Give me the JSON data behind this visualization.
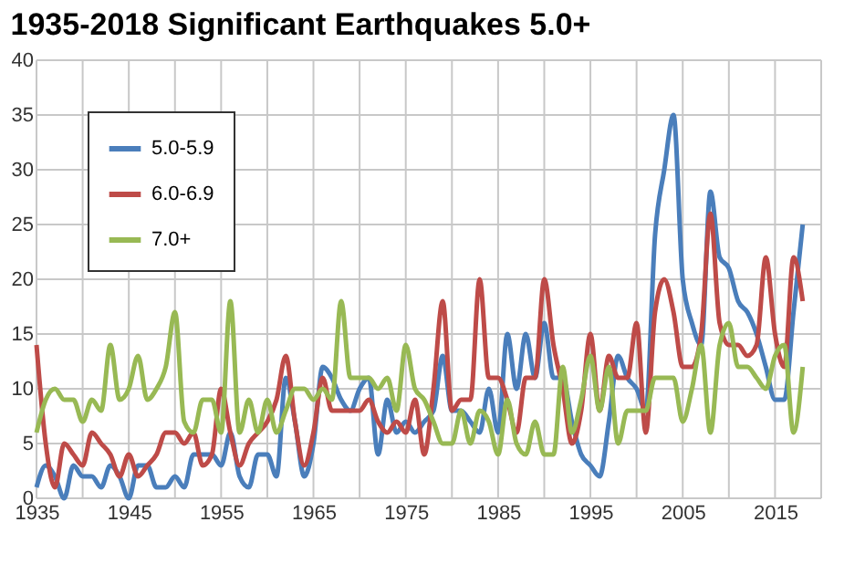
{
  "chart_data": {
    "type": "line",
    "title": "1935-2018 Significant Earthquakes 5.0+",
    "x": [
      1935,
      1936,
      1937,
      1938,
      1939,
      1940,
      1941,
      1942,
      1943,
      1944,
      1945,
      1946,
      1947,
      1948,
      1949,
      1950,
      1951,
      1952,
      1953,
      1954,
      1955,
      1956,
      1957,
      1958,
      1959,
      1960,
      1961,
      1962,
      1963,
      1964,
      1965,
      1966,
      1967,
      1968,
      1969,
      1970,
      1971,
      1972,
      1973,
      1974,
      1975,
      1976,
      1977,
      1978,
      1979,
      1980,
      1981,
      1982,
      1983,
      1984,
      1985,
      1986,
      1987,
      1988,
      1989,
      1990,
      1991,
      1992,
      1993,
      1994,
      1995,
      1996,
      1997,
      1998,
      1999,
      2000,
      2001,
      2002,
      2003,
      2004,
      2005,
      2006,
      2007,
      2008,
      2009,
      2010,
      2011,
      2012,
      2013,
      2014,
      2015,
      2016,
      2017,
      2018
    ],
    "series": [
      {
        "name": "5.0-5.9",
        "color": "#4a7ebb",
        "values": [
          1,
          3,
          2,
          0,
          3,
          2,
          2,
          1,
          3,
          2,
          0,
          3,
          3,
          1,
          1,
          2,
          1,
          4,
          4,
          4,
          3,
          6,
          2,
          1,
          4,
          4,
          2,
          11,
          7,
          2,
          5,
          12,
          11,
          9,
          8,
          10,
          11,
          4,
          9,
          6,
          7,
          6,
          7,
          8,
          13,
          8,
          8,
          7,
          6,
          10,
          6,
          15,
          10,
          15,
          11,
          16,
          11,
          11,
          7,
          4,
          3,
          2,
          7,
          13,
          11,
          10,
          8,
          24,
          30,
          35,
          20,
          16,
          14,
          28,
          22,
          21,
          18,
          17,
          15,
          12,
          9,
          9,
          17,
          25
        ]
      },
      {
        "name": "6.0-6.9",
        "color": "#be4b48",
        "values": [
          14,
          5,
          1,
          5,
          4,
          3,
          6,
          5,
          4,
          2,
          4,
          2,
          3,
          4,
          6,
          6,
          5,
          6,
          3,
          4,
          10,
          6,
          3,
          5,
          6,
          7,
          9,
          13,
          7,
          3,
          6,
          11,
          8,
          8,
          8,
          8,
          9,
          7,
          6,
          7,
          6,
          9,
          4,
          10,
          18,
          8,
          9,
          9,
          20,
          11,
          11,
          9,
          6,
          11,
          11,
          20,
          14,
          10,
          5,
          8,
          15,
          8,
          13,
          11,
          11,
          16,
          6,
          17,
          20,
          17,
          12,
          12,
          15,
          26,
          16,
          14,
          14,
          13,
          14,
          22,
          15,
          12,
          22,
          18
        ]
      },
      {
        "name": "7.0+",
        "color": "#98b954",
        "values": [
          6,
          9,
          10,
          9,
          9,
          7,
          9,
          8,
          14,
          9,
          10,
          13,
          9,
          10,
          12,
          17,
          7,
          6,
          9,
          9,
          6,
          18,
          6,
          9,
          6,
          9,
          6,
          8,
          10,
          10,
          9,
          10,
          9,
          18,
          11,
          11,
          11,
          10,
          11,
          8,
          14,
          10,
          9,
          7,
          5,
          5,
          8,
          5,
          8,
          7,
          4,
          9,
          5,
          4,
          7,
          4,
          4,
          12,
          6,
          9,
          13,
          8,
          12,
          5,
          8,
          8,
          8,
          11,
          11,
          11,
          7,
          10,
          14,
          6,
          14,
          16,
          12,
          12,
          11,
          10,
          13,
          14,
          6,
          12
        ]
      }
    ],
    "xlim": [
      1935,
      2020
    ],
    "xticks": [
      1935,
      {
        "value": 1940,
        "label": null
      },
      1945,
      {
        "value": 1950,
        "label": null
      },
      1955,
      {
        "value": 1960,
        "label": null
      },
      1965,
      {
        "value": 1970,
        "label": null
      },
      1975,
      {
        "value": 1980,
        "label": null
      },
      1985,
      {
        "value": 1990,
        "label": null
      },
      1995,
      {
        "value": 2000,
        "label": null
      },
      2005,
      {
        "value": 2010,
        "label": null
      },
      2015,
      {
        "value": 2020,
        "label": null
      }
    ],
    "ylim": [
      0,
      40
    ],
    "yticks": [
      0,
      5,
      10,
      15,
      20,
      25,
      30,
      35,
      40
    ],
    "grid": true,
    "legend": "top left",
    "marker": "none",
    "line_style": "solid"
  }
}
